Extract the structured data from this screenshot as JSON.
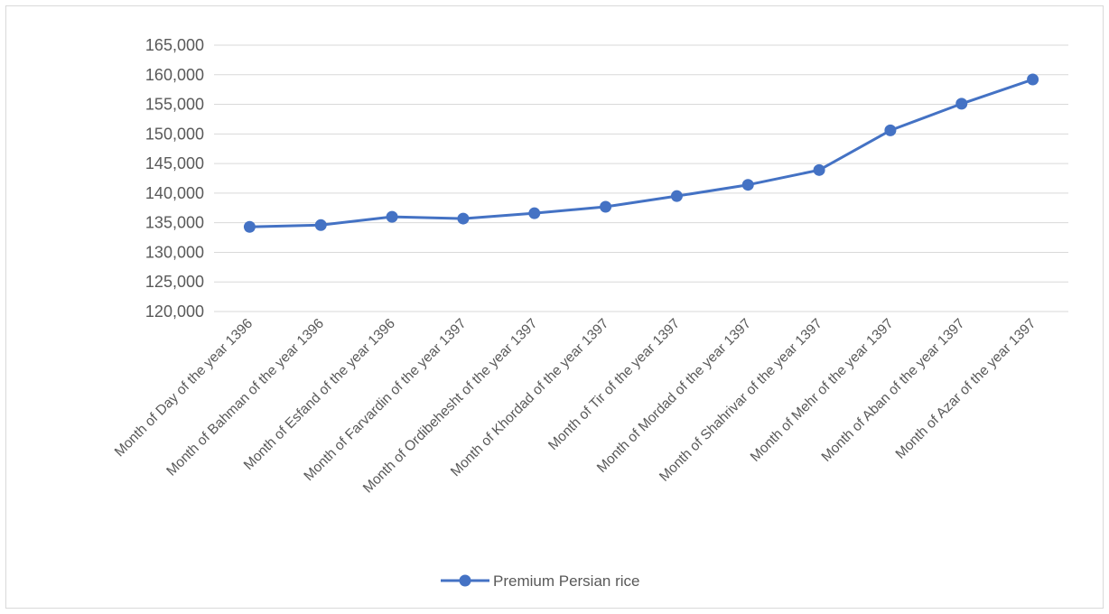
{
  "chart_data": {
    "type": "line",
    "title": "",
    "xlabel": "",
    "ylabel": "",
    "ylim": [
      120000,
      165000
    ],
    "ytick_step": 5000,
    "grid": true,
    "legend_position": "bottom",
    "categories": [
      "Month of Day of  the year 1396",
      "Month of Bahman of  the year 1396",
      "Month of Esfand of  the year 1396",
      "Month of Farvardin of  the year 1397",
      "Month of Ordibehesht of  the year 1397",
      "Month of Khordad of  the year 1397",
      "Month of Tir of  the year 1397",
      "Month of Mordad of  the year 1397",
      "Month of Shahrivar of  the year 1397",
      "Month of Mehr of  the year 1397",
      "Month of Aban of  the year 1397",
      "Month of Azar of  the year 1397"
    ],
    "series": [
      {
        "name": "Premium Persian rice",
        "color": "#4472C4",
        "values": [
          134300,
          134600,
          136000,
          135700,
          136600,
          137700,
          139500,
          141400,
          143900,
          150600,
          155100,
          159200
        ]
      }
    ]
  }
}
